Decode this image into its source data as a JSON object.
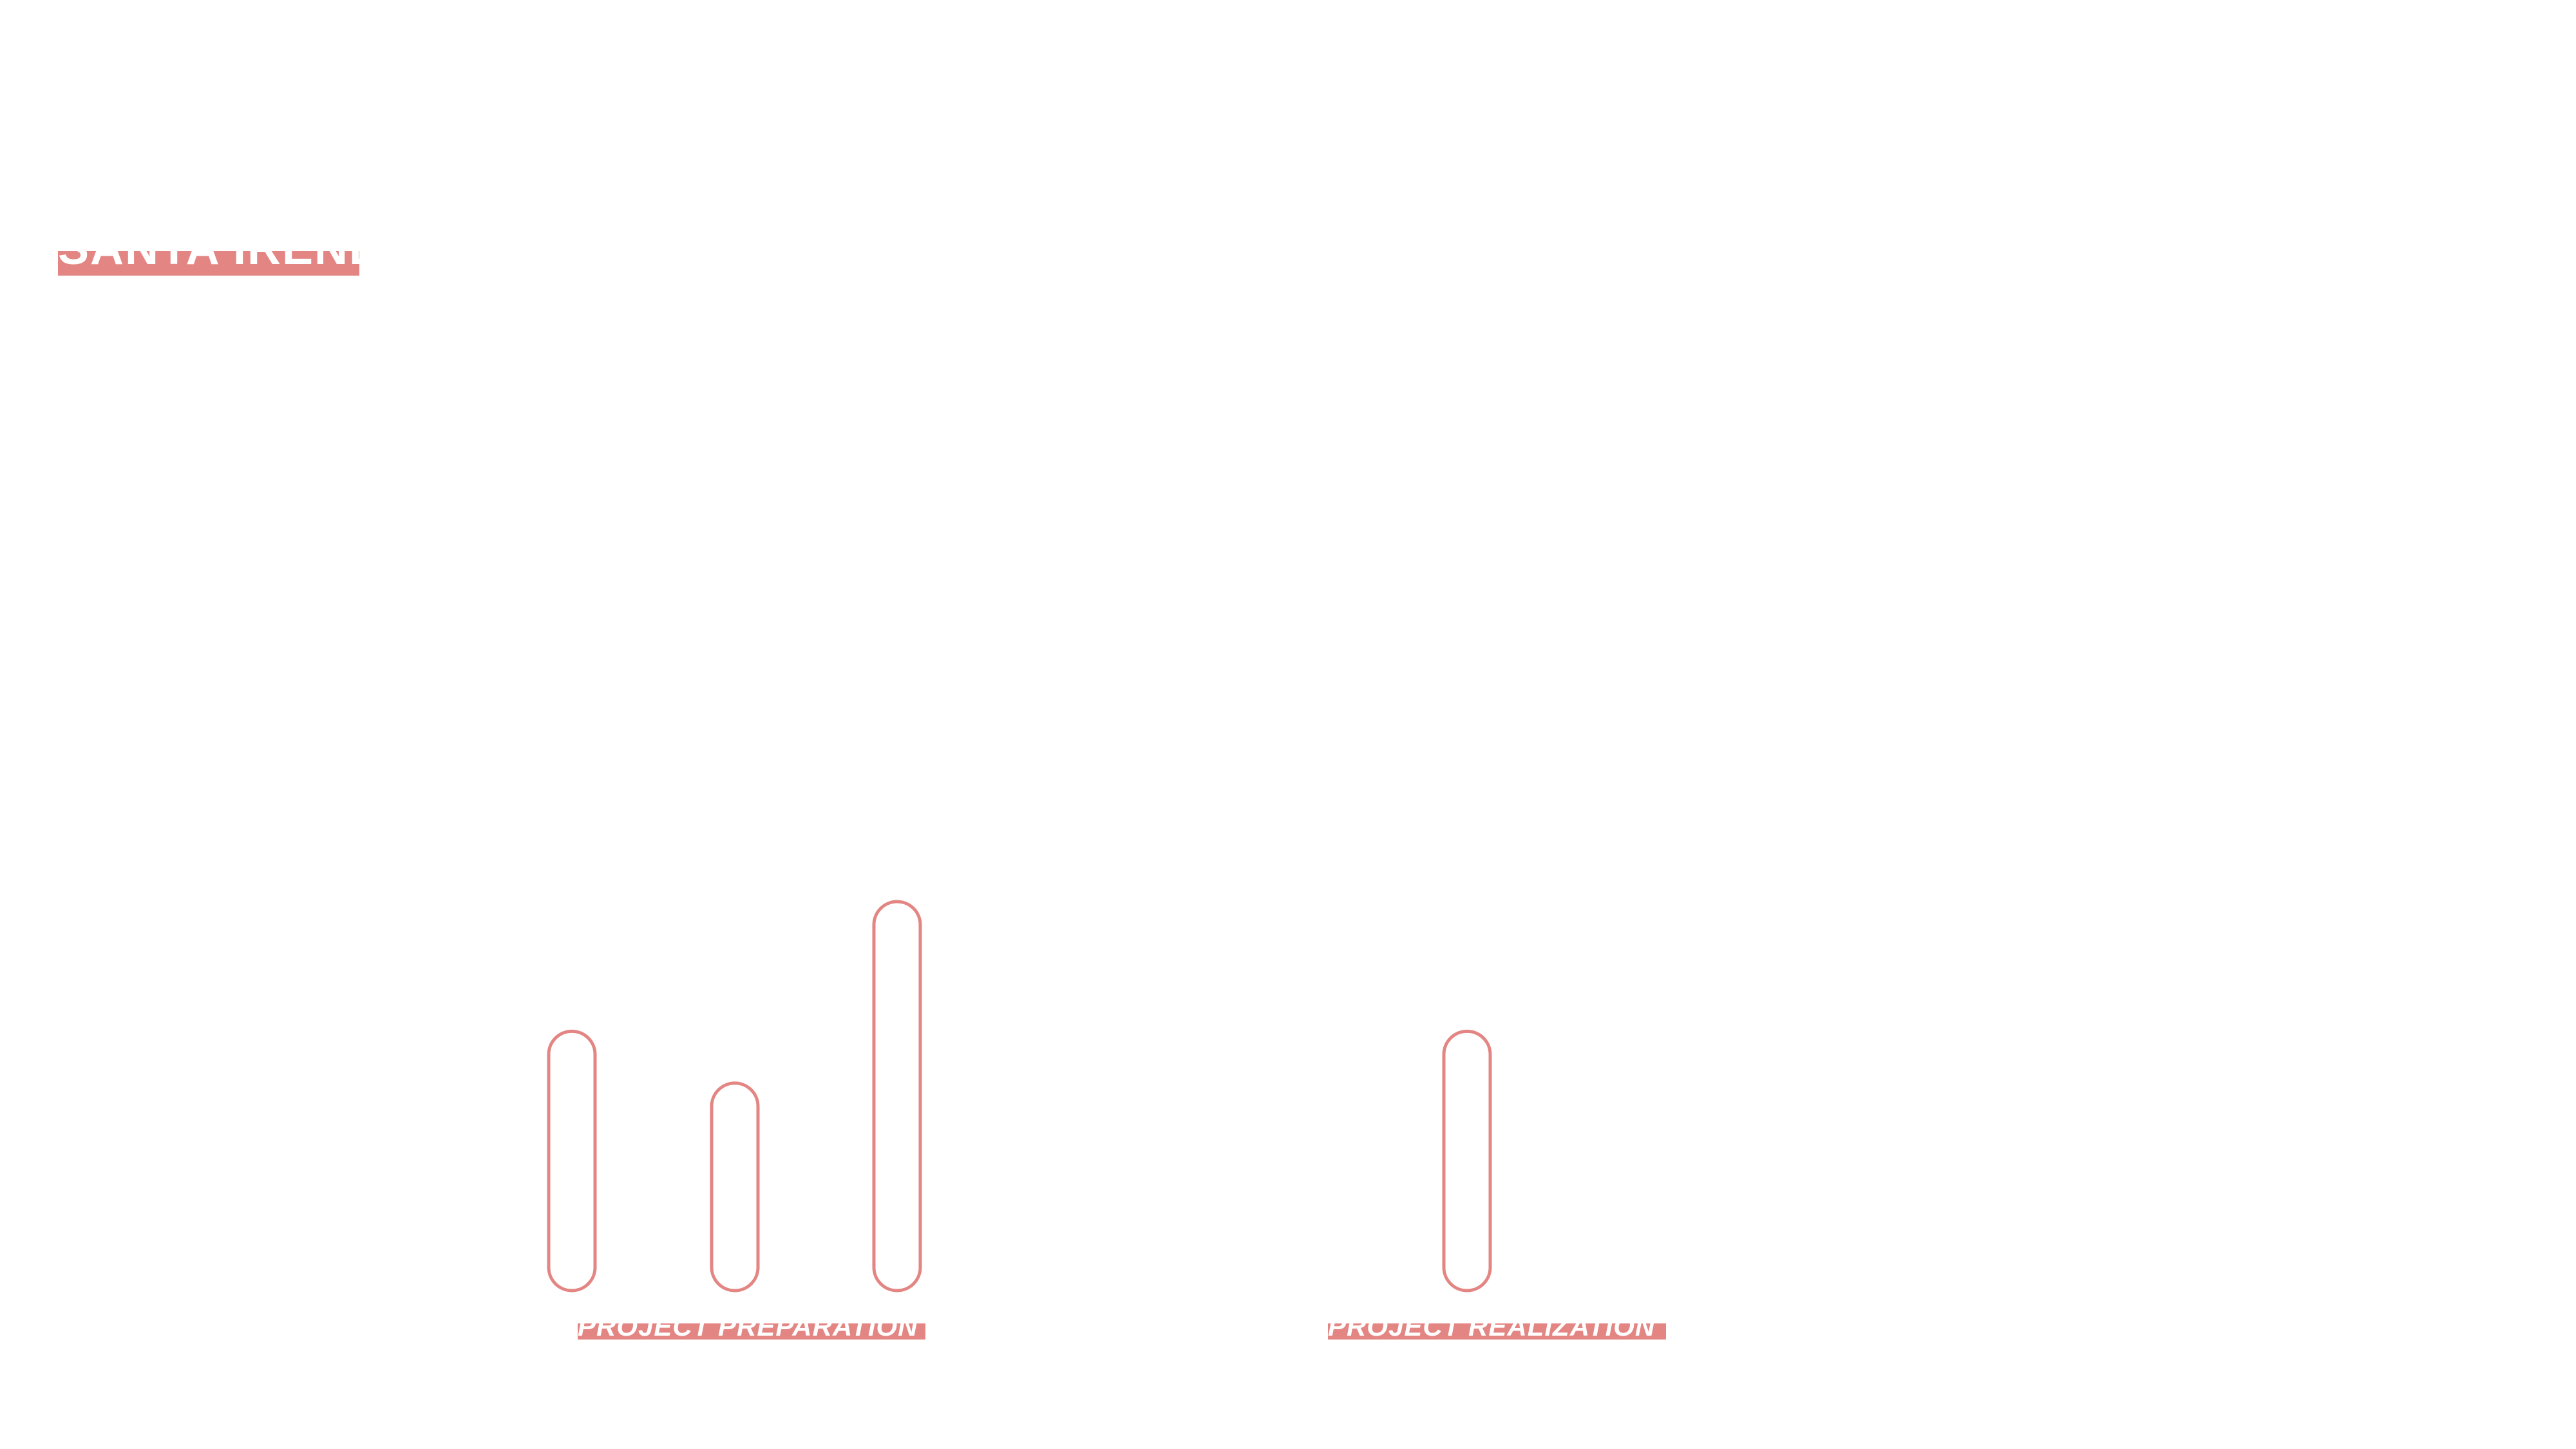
{
  "accent_color": "#e38683",
  "title": "SANTA IRENE",
  "chart_data": {
    "type": "bar",
    "title": "SANTA IRENE",
    "xlabel": "",
    "ylabel": "",
    "grid": false,
    "groups": [
      "PROJECT PREPARATION",
      "PROJECT REALIZATION"
    ],
    "categories": [
      "",
      "",
      "",
      ""
    ],
    "category_group": [
      "PROJECT PREPARATION",
      "PROJECT PREPARATION",
      "PROJECT PREPARATION",
      "PROJECT REALIZATION"
    ],
    "values": [
      4,
      3.2,
      6,
      4
    ],
    "ylim": [
      0,
      6
    ],
    "bar_style": "rounded-outline"
  }
}
